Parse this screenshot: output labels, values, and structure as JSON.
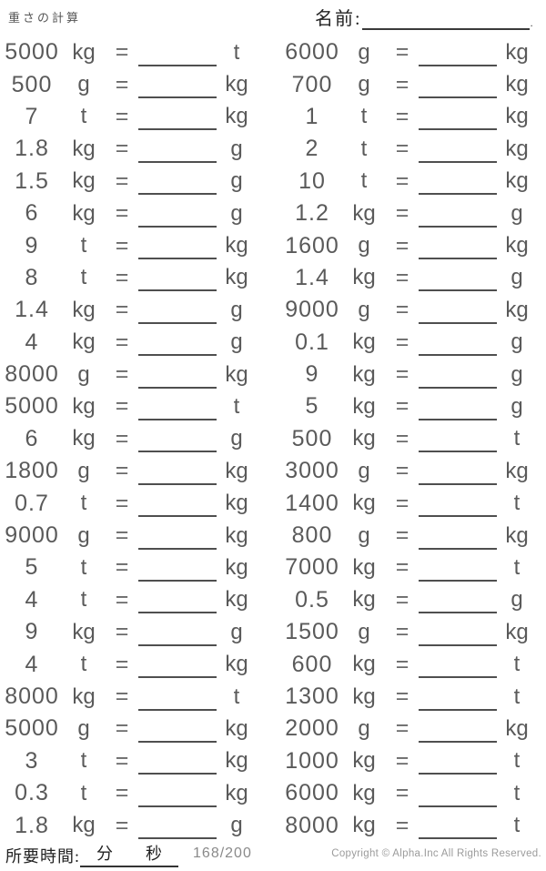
{
  "header": {
    "title": "重さの計算",
    "name_label": "名前:",
    "name_line_end": "."
  },
  "equals_sign": "=",
  "problems": {
    "left": [
      {
        "value": "5000",
        "from_unit": "kg",
        "to_unit": "t"
      },
      {
        "value": "500",
        "from_unit": "g",
        "to_unit": "kg"
      },
      {
        "value": "7",
        "from_unit": "t",
        "to_unit": "kg"
      },
      {
        "value": "1.8",
        "from_unit": "kg",
        "to_unit": "g"
      },
      {
        "value": "1.5",
        "from_unit": "kg",
        "to_unit": "g"
      },
      {
        "value": "6",
        "from_unit": "kg",
        "to_unit": "g"
      },
      {
        "value": "9",
        "from_unit": "t",
        "to_unit": "kg"
      },
      {
        "value": "8",
        "from_unit": "t",
        "to_unit": "kg"
      },
      {
        "value": "1.4",
        "from_unit": "kg",
        "to_unit": "g"
      },
      {
        "value": "4",
        "from_unit": "kg",
        "to_unit": "g"
      },
      {
        "value": "8000",
        "from_unit": "g",
        "to_unit": "kg"
      },
      {
        "value": "5000",
        "from_unit": "kg",
        "to_unit": "t"
      },
      {
        "value": "6",
        "from_unit": "kg",
        "to_unit": "g"
      },
      {
        "value": "1800",
        "from_unit": "g",
        "to_unit": "kg"
      },
      {
        "value": "0.7",
        "from_unit": "t",
        "to_unit": "kg"
      },
      {
        "value": "9000",
        "from_unit": "g",
        "to_unit": "kg"
      },
      {
        "value": "5",
        "from_unit": "t",
        "to_unit": "kg"
      },
      {
        "value": "4",
        "from_unit": "t",
        "to_unit": "kg"
      },
      {
        "value": "9",
        "from_unit": "kg",
        "to_unit": "g"
      },
      {
        "value": "4",
        "from_unit": "t",
        "to_unit": "kg"
      },
      {
        "value": "8000",
        "from_unit": "kg",
        "to_unit": "t"
      },
      {
        "value": "5000",
        "from_unit": "g",
        "to_unit": "kg"
      },
      {
        "value": "3",
        "from_unit": "t",
        "to_unit": "kg"
      },
      {
        "value": "0.3",
        "from_unit": "t",
        "to_unit": "kg"
      },
      {
        "value": "1.8",
        "from_unit": "kg",
        "to_unit": "g"
      }
    ],
    "right": [
      {
        "value": "6000",
        "from_unit": "g",
        "to_unit": "kg"
      },
      {
        "value": "700",
        "from_unit": "g",
        "to_unit": "kg"
      },
      {
        "value": "1",
        "from_unit": "t",
        "to_unit": "kg"
      },
      {
        "value": "2",
        "from_unit": "t",
        "to_unit": "kg"
      },
      {
        "value": "10",
        "from_unit": "t",
        "to_unit": "kg"
      },
      {
        "value": "1.2",
        "from_unit": "kg",
        "to_unit": "g"
      },
      {
        "value": "1600",
        "from_unit": "g",
        "to_unit": "kg"
      },
      {
        "value": "1.4",
        "from_unit": "kg",
        "to_unit": "g"
      },
      {
        "value": "9000",
        "from_unit": "g",
        "to_unit": "kg"
      },
      {
        "value": "0.1",
        "from_unit": "kg",
        "to_unit": "g"
      },
      {
        "value": "9",
        "from_unit": "kg",
        "to_unit": "g"
      },
      {
        "value": "5",
        "from_unit": "kg",
        "to_unit": "g"
      },
      {
        "value": "500",
        "from_unit": "kg",
        "to_unit": "t"
      },
      {
        "value": "3000",
        "from_unit": "g",
        "to_unit": "kg"
      },
      {
        "value": "1400",
        "from_unit": "kg",
        "to_unit": "t"
      },
      {
        "value": "800",
        "from_unit": "g",
        "to_unit": "kg"
      },
      {
        "value": "7000",
        "from_unit": "kg",
        "to_unit": "t"
      },
      {
        "value": "0.5",
        "from_unit": "kg",
        "to_unit": "g"
      },
      {
        "value": "1500",
        "from_unit": "g",
        "to_unit": "kg"
      },
      {
        "value": "600",
        "from_unit": "kg",
        "to_unit": "t"
      },
      {
        "value": "1300",
        "from_unit": "kg",
        "to_unit": "t"
      },
      {
        "value": "2000",
        "from_unit": "g",
        "to_unit": "kg"
      },
      {
        "value": "1000",
        "from_unit": "kg",
        "to_unit": "t"
      },
      {
        "value": "6000",
        "from_unit": "kg",
        "to_unit": "t"
      },
      {
        "value": "8000",
        "from_unit": "kg",
        "to_unit": "t"
      }
    ]
  },
  "footer": {
    "time_label": "所要時間:",
    "minutes_label": "分",
    "seconds_label": "秒",
    "page_number": "168/200",
    "copyright": "Copyright © Alpha.Inc All Rights Reserved."
  },
  "colors": {
    "text": "#5a5a5a",
    "answer_line": "#4f4f4f",
    "heading": "#222222",
    "muted": "#9b9b9b"
  }
}
